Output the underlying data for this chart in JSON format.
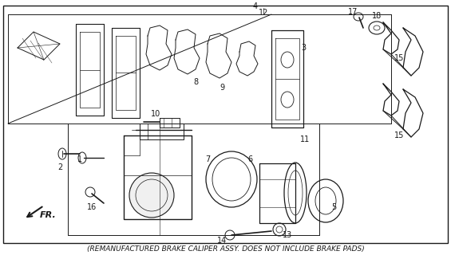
{
  "background_color": "#ffffff",
  "fig_width": 5.65,
  "fig_height": 3.2,
  "dpi": 100,
  "footer_text": "(REMANUFACTURED BRAKE CALIPER ASSY. DOES NOT INCLUDE BRAKE PADS)",
  "footer_fontsize": 6.5,
  "fr_label": "FR.",
  "line_color": "#1a1a1a",
  "line_width": 0.8,
  "label_fontsize": 7.0
}
